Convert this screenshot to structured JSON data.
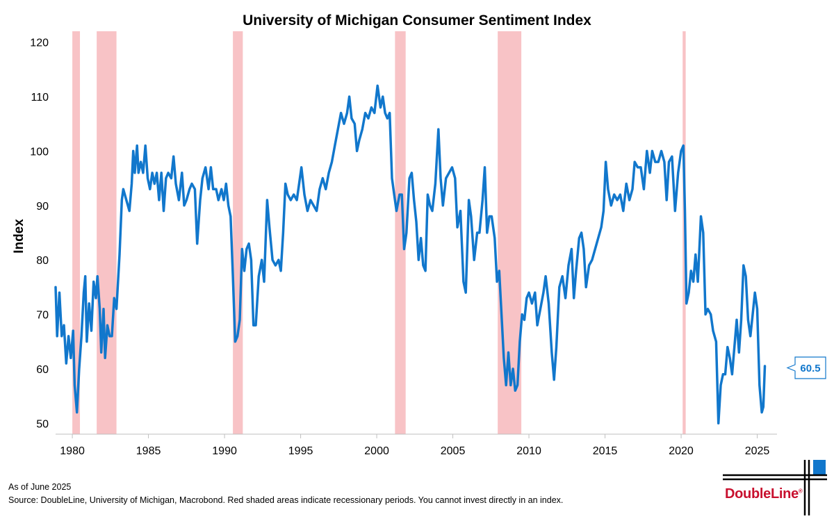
{
  "chart_data": {
    "type": "line",
    "title": "University of Michigan Consumer Sentiment Index",
    "ylabel": "Index",
    "xlabel": "",
    "ylim": [
      48,
      122
    ],
    "xlim": [
      1978.9,
      2026.3
    ],
    "yticks": [
      50,
      60,
      70,
      80,
      90,
      100,
      110,
      120
    ],
    "xticks": [
      1980,
      1985,
      1990,
      1995,
      2000,
      2005,
      2010,
      2015,
      2020,
      2025
    ],
    "recessions": [
      [
        1980.0,
        1980.5
      ],
      [
        1981.6,
        1982.9
      ],
      [
        1990.55,
        1991.2
      ],
      [
        2001.2,
        2001.9
      ],
      [
        2007.95,
        2009.5
      ],
      [
        2020.1,
        2020.3
      ]
    ],
    "last_value_label": "60.5",
    "series": [
      {
        "name": "Consumer Sentiment",
        "color": "#1177cc",
        "points": [
          [
            1978.9,
            75
          ],
          [
            1979.0,
            66
          ],
          [
            1979.15,
            74
          ],
          [
            1979.3,
            66
          ],
          [
            1979.45,
            68
          ],
          [
            1979.6,
            61
          ],
          [
            1979.75,
            66
          ],
          [
            1979.9,
            62
          ],
          [
            1980.05,
            67
          ],
          [
            1980.15,
            57
          ],
          [
            1980.3,
            52
          ],
          [
            1980.45,
            60
          ],
          [
            1980.6,
            66
          ],
          [
            1980.75,
            74
          ],
          [
            1980.85,
            77
          ],
          [
            1980.95,
            65
          ],
          [
            1981.1,
            72
          ],
          [
            1981.25,
            67
          ],
          [
            1981.4,
            76
          ],
          [
            1981.55,
            73
          ],
          [
            1981.65,
            77
          ],
          [
            1981.8,
            71
          ],
          [
            1981.9,
            63
          ],
          [
            1982.05,
            71
          ],
          [
            1982.15,
            62
          ],
          [
            1982.3,
            68
          ],
          [
            1982.45,
            66
          ],
          [
            1982.6,
            66
          ],
          [
            1982.75,
            73
          ],
          [
            1982.9,
            71
          ],
          [
            1983.1,
            81
          ],
          [
            1983.25,
            91
          ],
          [
            1983.35,
            93
          ],
          [
            1983.55,
            91
          ],
          [
            1983.75,
            89
          ],
          [
            1983.9,
            94
          ],
          [
            1984.0,
            100
          ],
          [
            1984.1,
            96
          ],
          [
            1984.25,
            101
          ],
          [
            1984.35,
            96
          ],
          [
            1984.5,
            98
          ],
          [
            1984.65,
            96
          ],
          [
            1984.8,
            101
          ],
          [
            1984.95,
            95
          ],
          [
            1985.1,
            93
          ],
          [
            1985.25,
            96
          ],
          [
            1985.4,
            94
          ],
          [
            1985.55,
            96
          ],
          [
            1985.7,
            91
          ],
          [
            1985.85,
            96
          ],
          [
            1986.0,
            89
          ],
          [
            1986.15,
            95
          ],
          [
            1986.3,
            96
          ],
          [
            1986.5,
            95
          ],
          [
            1986.65,
            99
          ],
          [
            1986.8,
            94
          ],
          [
            1987.0,
            91
          ],
          [
            1987.2,
            96
          ],
          [
            1987.35,
            90
          ],
          [
            1987.5,
            91
          ],
          [
            1987.7,
            93
          ],
          [
            1987.85,
            94
          ],
          [
            1988.05,
            93
          ],
          [
            1988.2,
            83
          ],
          [
            1988.4,
            91
          ],
          [
            1988.55,
            95
          ],
          [
            1988.75,
            97
          ],
          [
            1988.95,
            93
          ],
          [
            1989.1,
            97
          ],
          [
            1989.25,
            93
          ],
          [
            1989.45,
            93
          ],
          [
            1989.6,
            91
          ],
          [
            1989.8,
            93
          ],
          [
            1989.95,
            91
          ],
          [
            1990.1,
            94
          ],
          [
            1990.25,
            90
          ],
          [
            1990.4,
            88
          ],
          [
            1990.55,
            77
          ],
          [
            1990.7,
            65
          ],
          [
            1990.85,
            66
          ],
          [
            1991.0,
            69
          ],
          [
            1991.15,
            82
          ],
          [
            1991.3,
            78
          ],
          [
            1991.45,
            82
          ],
          [
            1991.6,
            83
          ],
          [
            1991.75,
            80
          ],
          [
            1991.9,
            68
          ],
          [
            1992.05,
            68
          ],
          [
            1992.25,
            77
          ],
          [
            1992.45,
            80
          ],
          [
            1992.6,
            76
          ],
          [
            1992.8,
            91
          ],
          [
            1992.95,
            86
          ],
          [
            1993.15,
            80
          ],
          [
            1993.35,
            79
          ],
          [
            1993.55,
            80
          ],
          [
            1993.7,
            78
          ],
          [
            1993.85,
            85
          ],
          [
            1994.0,
            94
          ],
          [
            1994.15,
            92
          ],
          [
            1994.35,
            91
          ],
          [
            1994.55,
            92
          ],
          [
            1994.75,
            91
          ],
          [
            1994.9,
            94
          ],
          [
            1995.05,
            97
          ],
          [
            1995.25,
            92
          ],
          [
            1995.45,
            89
          ],
          [
            1995.65,
            91
          ],
          [
            1995.85,
            90
          ],
          [
            1996.05,
            89
          ],
          [
            1996.25,
            93
          ],
          [
            1996.45,
            95
          ],
          [
            1996.65,
            93
          ],
          [
            1996.85,
            96
          ],
          [
            1997.05,
            98
          ],
          [
            1997.25,
            101
          ],
          [
            1997.45,
            104
          ],
          [
            1997.65,
            107
          ],
          [
            1997.85,
            105
          ],
          [
            1998.05,
            107
          ],
          [
            1998.2,
            110
          ],
          [
            1998.35,
            106
          ],
          [
            1998.55,
            105
          ],
          [
            1998.7,
            100
          ],
          [
            1998.85,
            102
          ],
          [
            1999.05,
            104
          ],
          [
            1999.25,
            107
          ],
          [
            1999.45,
            106
          ],
          [
            1999.65,
            108
          ],
          [
            1999.85,
            107
          ],
          [
            2000.05,
            112
          ],
          [
            2000.25,
            108
          ],
          [
            2000.4,
            110
          ],
          [
            2000.55,
            107
          ],
          [
            2000.7,
            106
          ],
          [
            2000.85,
            107
          ],
          [
            2001.0,
            95
          ],
          [
            2001.15,
            92
          ],
          [
            2001.3,
            89
          ],
          [
            2001.5,
            92
          ],
          [
            2001.65,
            92
          ],
          [
            2001.8,
            82
          ],
          [
            2001.95,
            85
          ],
          [
            2002.15,
            95
          ],
          [
            2002.3,
            96
          ],
          [
            2002.45,
            91
          ],
          [
            2002.6,
            87
          ],
          [
            2002.75,
            80
          ],
          [
            2002.9,
            84
          ],
          [
            2003.05,
            79
          ],
          [
            2003.2,
            78
          ],
          [
            2003.35,
            92
          ],
          [
            2003.5,
            90
          ],
          [
            2003.65,
            89
          ],
          [
            2003.85,
            94
          ],
          [
            2004.05,
            104
          ],
          [
            2004.2,
            95
          ],
          [
            2004.35,
            90
          ],
          [
            2004.55,
            95
          ],
          [
            2004.75,
            96
          ],
          [
            2004.95,
            97
          ],
          [
            2005.15,
            95
          ],
          [
            2005.3,
            86
          ],
          [
            2005.5,
            89
          ],
          [
            2005.7,
            76
          ],
          [
            2005.85,
            74
          ],
          [
            2006.05,
            91
          ],
          [
            2006.2,
            88
          ],
          [
            2006.4,
            80
          ],
          [
            2006.6,
            85
          ],
          [
            2006.75,
            85
          ],
          [
            2006.95,
            91
          ],
          [
            2007.1,
            97
          ],
          [
            2007.25,
            85
          ],
          [
            2007.4,
            88
          ],
          [
            2007.55,
            88
          ],
          [
            2007.75,
            84
          ],
          [
            2007.9,
            76
          ],
          [
            2008.05,
            78
          ],
          [
            2008.2,
            70
          ],
          [
            2008.35,
            62
          ],
          [
            2008.5,
            57
          ],
          [
            2008.65,
            63
          ],
          [
            2008.8,
            57
          ],
          [
            2008.95,
            60
          ],
          [
            2009.1,
            56
          ],
          [
            2009.25,
            57
          ],
          [
            2009.4,
            65
          ],
          [
            2009.55,
            70
          ],
          [
            2009.7,
            69
          ],
          [
            2009.85,
            73
          ],
          [
            2010.0,
            74
          ],
          [
            2010.2,
            72
          ],
          [
            2010.4,
            74
          ],
          [
            2010.55,
            68
          ],
          [
            2010.75,
            71
          ],
          [
            2010.95,
            74
          ],
          [
            2011.1,
            77
          ],
          [
            2011.3,
            72
          ],
          [
            2011.5,
            63
          ],
          [
            2011.65,
            58
          ],
          [
            2011.8,
            64
          ],
          [
            2012.0,
            75
          ],
          [
            2012.2,
            77
          ],
          [
            2012.4,
            73
          ],
          [
            2012.6,
            79
          ],
          [
            2012.8,
            82
          ],
          [
            2012.95,
            73
          ],
          [
            2013.1,
            78
          ],
          [
            2013.3,
            84
          ],
          [
            2013.45,
            85
          ],
          [
            2013.6,
            82
          ],
          [
            2013.75,
            75
          ],
          [
            2013.95,
            79
          ],
          [
            2014.15,
            80
          ],
          [
            2014.35,
            82
          ],
          [
            2014.55,
            84
          ],
          [
            2014.75,
            86
          ],
          [
            2014.9,
            89
          ],
          [
            2015.05,
            98
          ],
          [
            2015.2,
            93
          ],
          [
            2015.4,
            90
          ],
          [
            2015.6,
            92
          ],
          [
            2015.8,
            91
          ],
          [
            2016.0,
            92
          ],
          [
            2016.2,
            89
          ],
          [
            2016.4,
            94
          ],
          [
            2016.6,
            91
          ],
          [
            2016.8,
            93
          ],
          [
            2016.95,
            98
          ],
          [
            2017.15,
            97
          ],
          [
            2017.35,
            97
          ],
          [
            2017.55,
            93
          ],
          [
            2017.75,
            100
          ],
          [
            2017.95,
            96
          ],
          [
            2018.1,
            100
          ],
          [
            2018.3,
            98
          ],
          [
            2018.5,
            98
          ],
          [
            2018.7,
            100
          ],
          [
            2018.9,
            98
          ],
          [
            2019.05,
            91
          ],
          [
            2019.2,
            98
          ],
          [
            2019.4,
            99
          ],
          [
            2019.6,
            89
          ],
          [
            2019.8,
            96
          ],
          [
            2020.0,
            100
          ],
          [
            2020.15,
            101
          ],
          [
            2020.25,
            89
          ],
          [
            2020.35,
            72
          ],
          [
            2020.5,
            74
          ],
          [
            2020.65,
            78
          ],
          [
            2020.8,
            76
          ],
          [
            2020.95,
            81
          ],
          [
            2021.1,
            76
          ],
          [
            2021.3,
            88
          ],
          [
            2021.45,
            85
          ],
          [
            2021.6,
            70
          ],
          [
            2021.75,
            71
          ],
          [
            2021.95,
            70
          ],
          [
            2022.1,
            67
          ],
          [
            2022.3,
            65
          ],
          [
            2022.45,
            50
          ],
          [
            2022.6,
            57
          ],
          [
            2022.75,
            59
          ],
          [
            2022.9,
            59
          ],
          [
            2023.05,
            64
          ],
          [
            2023.2,
            62
          ],
          [
            2023.35,
            59
          ],
          [
            2023.5,
            64
          ],
          [
            2023.65,
            69
          ],
          [
            2023.8,
            63
          ],
          [
            2023.95,
            69
          ],
          [
            2024.1,
            79
          ],
          [
            2024.25,
            77
          ],
          [
            2024.4,
            69
          ],
          [
            2024.55,
            66
          ],
          [
            2024.7,
            70
          ],
          [
            2024.85,
            74
          ],
          [
            2025.0,
            71
          ],
          [
            2025.15,
            57
          ],
          [
            2025.3,
            52
          ],
          [
            2025.4,
            53
          ],
          [
            2025.5,
            60.5
          ]
        ]
      }
    ]
  },
  "footer": {
    "as_of": "As of June 2025",
    "source": "Source: DoubleLine, University of Michigan, Macrobond. Red shaded areas indicate recessionary periods. You cannot invest directly in an index."
  },
  "logo": {
    "name": "DoubleLine",
    "mark": "®",
    "colors": {
      "text": "#c8102e",
      "lines": "#000000",
      "accent": "#1177cc"
    }
  }
}
